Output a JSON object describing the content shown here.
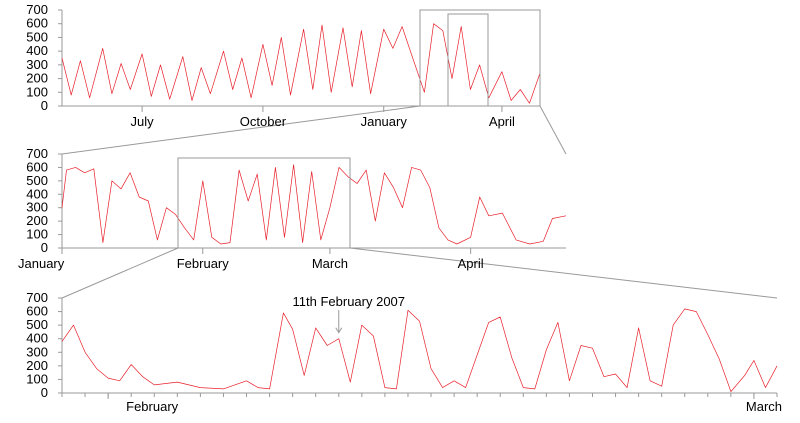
{
  "chart_data": [
    {
      "type": "line",
      "panel": "overview",
      "title": "",
      "xlabel": "",
      "ylabel": "",
      "x_range": [
        "2006-05-01",
        "2007-04-30"
      ],
      "ylim": [
        0,
        700
      ],
      "yticks": [
        0,
        100,
        200,
        300,
        400,
        500,
        600,
        700
      ],
      "xticks": [
        {
          "date": "2006-07-01",
          "label": "July"
        },
        {
          "date": "2006-10-01",
          "label": "October"
        },
        {
          "date": "2007-01-01",
          "label": "January"
        },
        {
          "date": "2007-04-01",
          "label": "April"
        }
      ],
      "series": [
        {
          "color": "#e8202a",
          "points": [
            [
              "2006-05-01",
              350
            ],
            [
              "2006-05-08",
              80
            ],
            [
              "2006-05-15",
              330
            ],
            [
              "2006-05-22",
              60
            ],
            [
              "2006-06-01",
              420
            ],
            [
              "2006-06-08",
              90
            ],
            [
              "2006-06-15",
              310
            ],
            [
              "2006-06-22",
              120
            ],
            [
              "2006-07-01",
              380
            ],
            [
              "2006-07-08",
              70
            ],
            [
              "2006-07-15",
              300
            ],
            [
              "2006-07-22",
              50
            ],
            [
              "2006-08-01",
              360
            ],
            [
              "2006-08-08",
              40
            ],
            [
              "2006-08-15",
              280
            ],
            [
              "2006-08-22",
              90
            ],
            [
              "2006-09-01",
              400
            ],
            [
              "2006-09-08",
              120
            ],
            [
              "2006-09-15",
              350
            ],
            [
              "2006-09-22",
              60
            ],
            [
              "2006-10-01",
              450
            ],
            [
              "2006-10-08",
              150
            ],
            [
              "2006-10-15",
              500
            ],
            [
              "2006-10-22",
              80
            ],
            [
              "2006-11-01",
              560
            ],
            [
              "2006-11-08",
              120
            ],
            [
              "2006-11-15",
              590
            ],
            [
              "2006-11-22",
              100
            ],
            [
              "2006-12-01",
              570
            ],
            [
              "2006-12-08",
              140
            ],
            [
              "2006-12-15",
              550
            ],
            [
              "2006-12-22",
              90
            ],
            [
              "2007-01-01",
              560
            ],
            [
              "2007-01-08",
              420
            ],
            [
              "2007-01-15",
              580
            ],
            [
              "2007-01-22",
              380
            ],
            [
              "2007-02-01",
              100
            ],
            [
              "2007-02-08",
              600
            ],
            [
              "2007-02-15",
              550
            ],
            [
              "2007-02-22",
              200
            ],
            [
              "2007-03-01",
              580
            ],
            [
              "2007-03-08",
              120
            ],
            [
              "2007-03-15",
              300
            ],
            [
              "2007-03-22",
              60
            ],
            [
              "2007-04-01",
              250
            ],
            [
              "2007-04-08",
              40
            ],
            [
              "2007-04-15",
              120
            ],
            [
              "2007-04-22",
              20
            ],
            [
              "2007-04-30",
              240
            ]
          ]
        }
      ]
    },
    {
      "type": "line",
      "panel": "medium",
      "title": "",
      "xlabel": "",
      "ylabel": "",
      "x_range": [
        "2007-01-01",
        "2007-04-22"
      ],
      "ylim": [
        0,
        700
      ],
      "yticks": [
        0,
        100,
        200,
        300,
        400,
        500,
        600,
        700
      ],
      "xticks": [
        {
          "date": "2007-01-01",
          "label": "January"
        },
        {
          "date": "2007-02-01",
          "label": "February"
        },
        {
          "date": "2007-03-01",
          "label": "March"
        },
        {
          "date": "2007-04-01",
          "label": "April"
        }
      ],
      "series": [
        {
          "color": "#e8202a",
          "points": [
            [
              "2007-01-01",
              300
            ],
            [
              "2007-01-02",
              580
            ],
            [
              "2007-01-04",
              600
            ],
            [
              "2007-01-06",
              560
            ],
            [
              "2007-01-08",
              590
            ],
            [
              "2007-01-10",
              40
            ],
            [
              "2007-01-12",
              500
            ],
            [
              "2007-01-14",
              440
            ],
            [
              "2007-01-16",
              560
            ],
            [
              "2007-01-18",
              380
            ],
            [
              "2007-01-20",
              350
            ],
            [
              "2007-01-22",
              60
            ],
            [
              "2007-01-24",
              300
            ],
            [
              "2007-01-26",
              250
            ],
            [
              "2007-01-28",
              150
            ],
            [
              "2007-01-30",
              60
            ],
            [
              "2007-02-01",
              500
            ],
            [
              "2007-02-03",
              80
            ],
            [
              "2007-02-05",
              30
            ],
            [
              "2007-02-07",
              40
            ],
            [
              "2007-02-09",
              580
            ],
            [
              "2007-02-11",
              350
            ],
            [
              "2007-02-13",
              550
            ],
            [
              "2007-02-15",
              60
            ],
            [
              "2007-02-17",
              600
            ],
            [
              "2007-02-19",
              80
            ],
            [
              "2007-02-21",
              620
            ],
            [
              "2007-02-23",
              40
            ],
            [
              "2007-02-25",
              570
            ],
            [
              "2007-02-27",
              60
            ],
            [
              "2007-03-01",
              300
            ],
            [
              "2007-03-03",
              600
            ],
            [
              "2007-03-05",
              530
            ],
            [
              "2007-03-07",
              480
            ],
            [
              "2007-03-09",
              580
            ],
            [
              "2007-03-11",
              200
            ],
            [
              "2007-03-13",
              560
            ],
            [
              "2007-03-15",
              450
            ],
            [
              "2007-03-17",
              300
            ],
            [
              "2007-03-19",
              600
            ],
            [
              "2007-03-21",
              580
            ],
            [
              "2007-03-23",
              450
            ],
            [
              "2007-03-25",
              150
            ],
            [
              "2007-03-27",
              60
            ],
            [
              "2007-03-29",
              30
            ],
            [
              "2007-04-01",
              80
            ],
            [
              "2007-04-03",
              380
            ],
            [
              "2007-04-05",
              240
            ],
            [
              "2007-04-08",
              260
            ],
            [
              "2007-04-11",
              60
            ],
            [
              "2007-04-14",
              30
            ],
            [
              "2007-04-17",
              50
            ],
            [
              "2007-04-19",
              220
            ],
            [
              "2007-04-22",
              240
            ]
          ]
        }
      ]
    },
    {
      "type": "line",
      "panel": "detail",
      "title": "",
      "xlabel": "",
      "ylabel": "",
      "x_range": [
        "2007-01-30",
        "2007-03-02"
      ],
      "ylim": [
        0,
        700
      ],
      "yticks": [
        0,
        100,
        200,
        300,
        400,
        500,
        600,
        700
      ],
      "xticks": [
        {
          "date": "2007-02-01",
          "label": "February"
        },
        {
          "date": "2007-03-01",
          "label": "March"
        }
      ],
      "annotation": {
        "text": "11th February 2007",
        "date": "2007-02-11",
        "value": 400
      },
      "series": [
        {
          "color": "#e8202a",
          "points": [
            [
              "2007-01-30",
              380
            ],
            [
              "2007-01-30.5",
              500
            ],
            [
              "2007-01-31",
              300
            ],
            [
              "2007-01-31.5",
              180
            ],
            [
              "2007-02-01",
              110
            ],
            [
              "2007-02-01.5",
              90
            ],
            [
              "2007-02-02",
              210
            ],
            [
              "2007-02-02.5",
              120
            ],
            [
              "2007-02-03",
              60
            ],
            [
              "2007-02-04",
              80
            ],
            [
              "2007-02-05",
              40
            ],
            [
              "2007-02-06",
              30
            ],
            [
              "2007-02-07",
              90
            ],
            [
              "2007-02-07.5",
              40
            ],
            [
              "2007-02-08",
              30
            ],
            [
              "2007-02-08.6",
              590
            ],
            [
              "2007-02-09",
              470
            ],
            [
              "2007-02-09.5",
              130
            ],
            [
              "2007-02-10",
              480
            ],
            [
              "2007-02-10.5",
              350
            ],
            [
              "2007-02-11",
              400
            ],
            [
              "2007-02-11.5",
              80
            ],
            [
              "2007-02-12",
              500
            ],
            [
              "2007-02-12.5",
              420
            ],
            [
              "2007-02-13",
              40
            ],
            [
              "2007-02-13.5",
              30
            ],
            [
              "2007-02-14",
              610
            ],
            [
              "2007-02-14.5",
              530
            ],
            [
              "2007-02-15",
              180
            ],
            [
              "2007-02-15.5",
              40
            ],
            [
              "2007-02-16",
              90
            ],
            [
              "2007-02-16.5",
              40
            ],
            [
              "2007-02-17.5",
              520
            ],
            [
              "2007-02-18",
              560
            ],
            [
              "2007-02-18.5",
              260
            ],
            [
              "2007-02-19",
              40
            ],
            [
              "2007-02-19.5",
              30
            ],
            [
              "2007-02-20",
              320
            ],
            [
              "2007-02-20.5",
              520
            ],
            [
              "2007-02-21",
              90
            ],
            [
              "2007-02-21.5",
              350
            ],
            [
              "2007-02-22",
              330
            ],
            [
              "2007-02-22.5",
              120
            ],
            [
              "2007-02-23",
              140
            ],
            [
              "2007-02-23.5",
              40
            ],
            [
              "2007-02-24",
              480
            ],
            [
              "2007-02-24.5",
              90
            ],
            [
              "2007-02-25",
              50
            ],
            [
              "2007-02-25.5",
              500
            ],
            [
              "2007-02-26",
              620
            ],
            [
              "2007-02-26.5",
              600
            ],
            [
              "2007-02-27",
              430
            ],
            [
              "2007-02-27.5",
              250
            ],
            [
              "2007-02-28",
              10
            ],
            [
              "2007-02-28.6",
              130
            ],
            [
              "2007-03-01",
              240
            ],
            [
              "2007-03-01.5",
              40
            ],
            [
              "2007-03-02",
              200
            ]
          ]
        }
      ]
    }
  ]
}
